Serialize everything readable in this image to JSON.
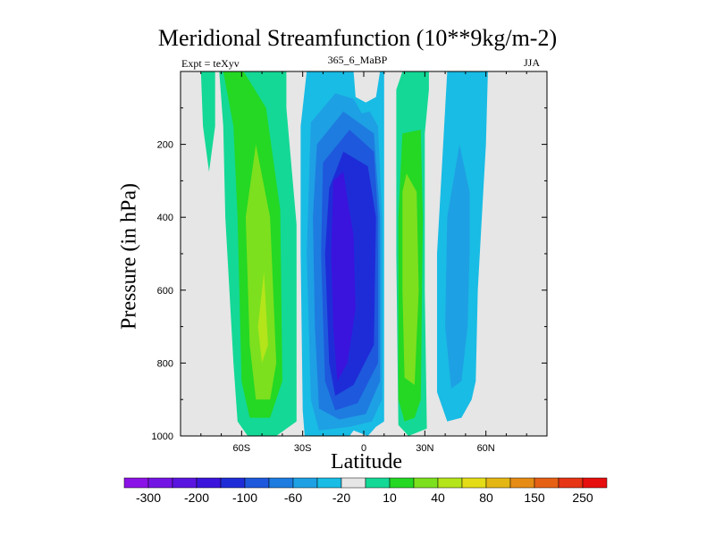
{
  "chart_data": {
    "type": "contour",
    "title": "Meridional Streamfunction (10**9kg/m-2)",
    "subtitle_left": "Expt = teXyv",
    "subtitle_center": "365_6_MaBP",
    "subtitle_right": "JJA",
    "xlabel": "Latitude",
    "ylabel": "Pressure (in hPa)",
    "xlim": [
      -90,
      90
    ],
    "ylim": [
      1000,
      0
    ],
    "x_ticks": [
      {
        "value": -60,
        "label": "60S"
      },
      {
        "value": -30,
        "label": "30S"
      },
      {
        "value": 0,
        "label": "0"
      },
      {
        "value": 30,
        "label": "30N"
      },
      {
        "value": 60,
        "label": "60N"
      }
    ],
    "y_ticks": [
      {
        "value": 200,
        "label": "200"
      },
      {
        "value": 400,
        "label": "400"
      },
      {
        "value": 600,
        "label": "600"
      },
      {
        "value": 800,
        "label": "800"
      },
      {
        "value": 1000,
        "label": "1000"
      }
    ],
    "colorbar": {
      "colors": [
        "#8b12e6",
        "#7414e4",
        "#5a14e0",
        "#3a14dc",
        "#1e2cd8",
        "#1e58dc",
        "#1e7ce0",
        "#1ea0e4",
        "#19bce4",
        "#e6e6e6",
        "#14d896",
        "#24d824",
        "#7ce01e",
        "#b4e41a",
        "#e4dc16",
        "#e4b614",
        "#e68c14",
        "#e66014",
        "#e63414",
        "#e60e0e"
      ],
      "labels": [
        "-300",
        "-200",
        "-100",
        "-60",
        "-20",
        "10",
        "40",
        "80",
        "150",
        "250"
      ]
    },
    "bands": [
      {
        "level": "10",
        "color": "#14d896",
        "polygon": [
          [
            -80,
            0
          ],
          [
            -73,
            0
          ],
          [
            -73,
            150
          ],
          [
            -76,
            275
          ],
          [
            -79,
            150
          ]
        ]
      },
      {
        "level": "10",
        "color": "#14d896",
        "polygon": [
          [
            -73,
            0
          ],
          [
            -38,
            0
          ],
          [
            -38,
            100
          ],
          [
            -33,
            420
          ],
          [
            -33,
            960
          ],
          [
            -43,
            1000
          ],
          [
            -57,
            1000
          ],
          [
            -62,
            960
          ],
          [
            -64,
            800
          ],
          [
            -68,
            400
          ],
          [
            -69,
            150
          ],
          [
            -71,
            0
          ]
        ]
      },
      {
        "level": "40",
        "color": "#24d824",
        "polygon": [
          [
            -69,
            0
          ],
          [
            -59,
            0
          ],
          [
            -48,
            100
          ],
          [
            -41,
            380
          ],
          [
            -40,
            850
          ],
          [
            -46,
            950
          ],
          [
            -56,
            950
          ],
          [
            -60,
            850
          ],
          [
            -62,
            400
          ],
          [
            -64,
            150
          ]
        ]
      },
      {
        "level": "80",
        "color": "#7ce01e",
        "polygon": [
          [
            -53,
            200
          ],
          [
            -46,
            400
          ],
          [
            -43,
            800
          ],
          [
            -46,
            900
          ],
          [
            -53,
            900
          ],
          [
            -56,
            750
          ],
          [
            -58,
            400
          ]
        ]
      },
      {
        "level": "150",
        "color": "#b4e41a",
        "polygon": [
          [
            -49,
            550
          ],
          [
            -47,
            750
          ],
          [
            -50,
            800
          ],
          [
            -52,
            700
          ]
        ]
      },
      {
        "level": "-20",
        "color": "#19bce4",
        "polygon": [
          [
            -28,
            0
          ],
          [
            -5,
            0
          ],
          [
            -4,
            70
          ],
          [
            1,
            85
          ],
          [
            6,
            70
          ],
          [
            8,
            0
          ],
          [
            10,
            0
          ],
          [
            10,
            960
          ],
          [
            6,
            975
          ],
          [
            2,
            1000
          ],
          [
            -5,
            985
          ],
          [
            -7,
            1000
          ],
          [
            -29,
            1000
          ],
          [
            -30,
            930
          ],
          [
            -31,
            500
          ],
          [
            -31,
            150
          ]
        ]
      },
      {
        "level": "-60",
        "color": "#1ea0e4",
        "polygon": [
          [
            -26,
            140
          ],
          [
            -14,
            60
          ],
          [
            -5,
            75
          ],
          [
            -1,
            115
          ],
          [
            3,
            110
          ],
          [
            7,
            150
          ],
          [
            9,
            400
          ],
          [
            9,
            900
          ],
          [
            4,
            960
          ],
          [
            -7,
            975
          ],
          [
            -22,
            985
          ],
          [
            -26,
            900
          ],
          [
            -28,
            500
          ]
        ]
      },
      {
        "level": "-100",
        "color": "#1e7ce0",
        "polygon": [
          [
            -23,
            200
          ],
          [
            -10,
            110
          ],
          [
            5,
            170
          ],
          [
            8,
            400
          ],
          [
            8,
            850
          ],
          [
            1,
            940
          ],
          [
            -12,
            955
          ],
          [
            -22,
            925
          ],
          [
            -24,
            700
          ],
          [
            -25,
            400
          ]
        ]
      },
      {
        "level": "-140",
        "color": "#1e58dc",
        "polygon": [
          [
            -20,
            250
          ],
          [
            -7,
            160
          ],
          [
            5,
            220
          ],
          [
            7,
            400
          ],
          [
            7,
            800
          ],
          [
            -3,
            910
          ],
          [
            -14,
            930
          ],
          [
            -19,
            850
          ],
          [
            -21,
            500
          ]
        ]
      },
      {
        "level": "-200",
        "color": "#1e2cd8",
        "polygon": [
          [
            -17,
            320
          ],
          [
            -10,
            220
          ],
          [
            2,
            260
          ],
          [
            6,
            400
          ],
          [
            5,
            750
          ],
          [
            -5,
            860
          ],
          [
            -14,
            890
          ],
          [
            -17,
            800
          ],
          [
            -19,
            500
          ]
        ]
      },
      {
        "level": "-260",
        "color": "#3a14dc",
        "polygon": [
          [
            -15,
            300
          ],
          [
            -10,
            275
          ],
          [
            -8,
            350
          ],
          [
            -5,
            450
          ],
          [
            -4,
            650
          ],
          [
            -8,
            800
          ],
          [
            -13,
            850
          ],
          [
            -15,
            700
          ],
          [
            -16,
            500
          ]
        ]
      },
      {
        "level": "10",
        "color": "#14d896",
        "polygon": [
          [
            19,
            0
          ],
          [
            32,
            0
          ],
          [
            32,
            50
          ],
          [
            30,
            170
          ],
          [
            30,
            600
          ],
          [
            31,
            980
          ],
          [
            22,
            1000
          ],
          [
            17,
            970
          ],
          [
            16,
            500
          ],
          [
            16,
            50
          ]
        ]
      },
      {
        "level": "40",
        "color": "#24d824",
        "polygon": [
          [
            19,
            170
          ],
          [
            28,
            160
          ],
          [
            29,
            400
          ],
          [
            28,
            900
          ],
          [
            25,
            950
          ],
          [
            20,
            960
          ],
          [
            17,
            900
          ],
          [
            17,
            400
          ]
        ]
      },
      {
        "level": "80",
        "color": "#7ce01e",
        "polygon": [
          [
            21,
            280
          ],
          [
            26,
            330
          ],
          [
            27,
            600
          ],
          [
            25,
            860
          ],
          [
            20,
            840
          ],
          [
            19,
            600
          ],
          [
            19,
            330
          ]
        ]
      },
      {
        "level": "-20",
        "color": "#19bce4",
        "polygon": [
          [
            41,
            0
          ],
          [
            61,
            0
          ],
          [
            60,
            200
          ],
          [
            58,
            400
          ],
          [
            56,
            600
          ],
          [
            55,
            850
          ],
          [
            53,
            900
          ],
          [
            48,
            950
          ],
          [
            41,
            960
          ],
          [
            36,
            880
          ],
          [
            36,
            500
          ],
          [
            38,
            300
          ],
          [
            40,
            100
          ]
        ]
      },
      {
        "level": "-60",
        "color": "#1ea0e4",
        "polygon": [
          [
            47,
            200
          ],
          [
            52,
            330
          ],
          [
            52,
            500
          ],
          [
            51,
            700
          ],
          [
            48,
            850
          ],
          [
            43,
            870
          ],
          [
            40,
            700
          ],
          [
            41,
            400
          ]
        ]
      }
    ]
  }
}
